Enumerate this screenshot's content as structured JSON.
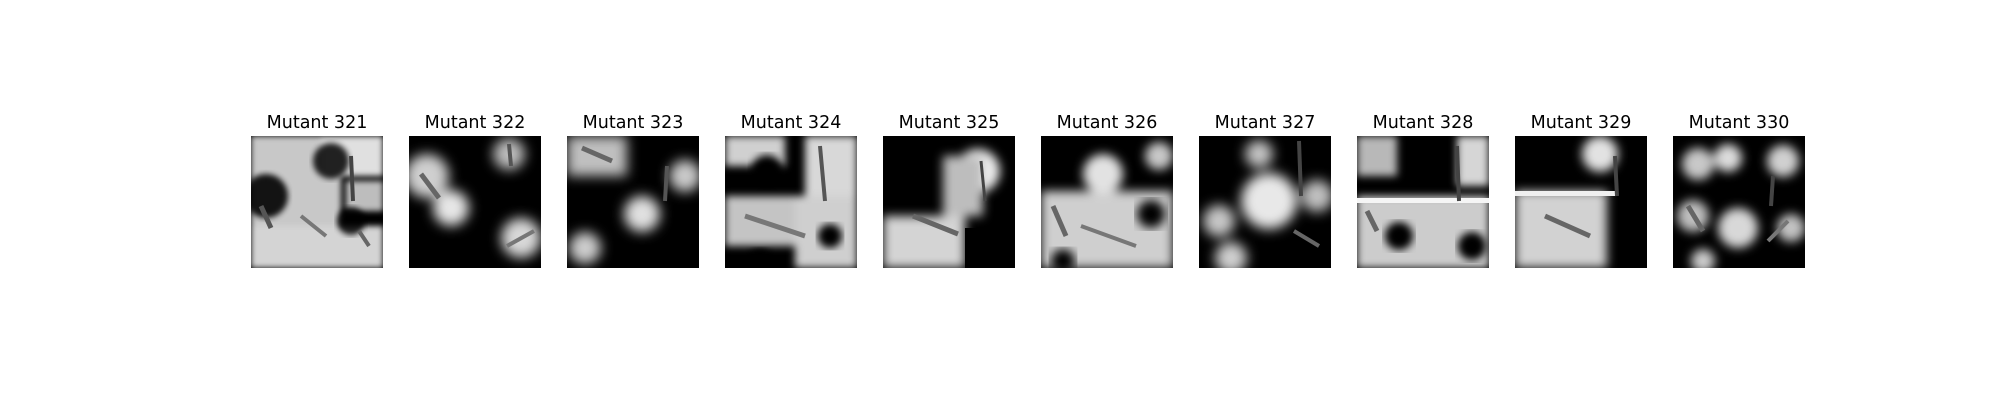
{
  "figure": {
    "background": "#ffffff",
    "panels": [
      {
        "title": "Mutant 321"
      },
      {
        "title": "Mutant 322"
      },
      {
        "title": "Mutant 323"
      },
      {
        "title": "Mutant 324"
      },
      {
        "title": "Mutant 325"
      },
      {
        "title": "Mutant 326"
      },
      {
        "title": "Mutant 327"
      },
      {
        "title": "Mutant 328"
      },
      {
        "title": "Mutant 329"
      },
      {
        "title": "Mutant 330"
      }
    ]
  }
}
